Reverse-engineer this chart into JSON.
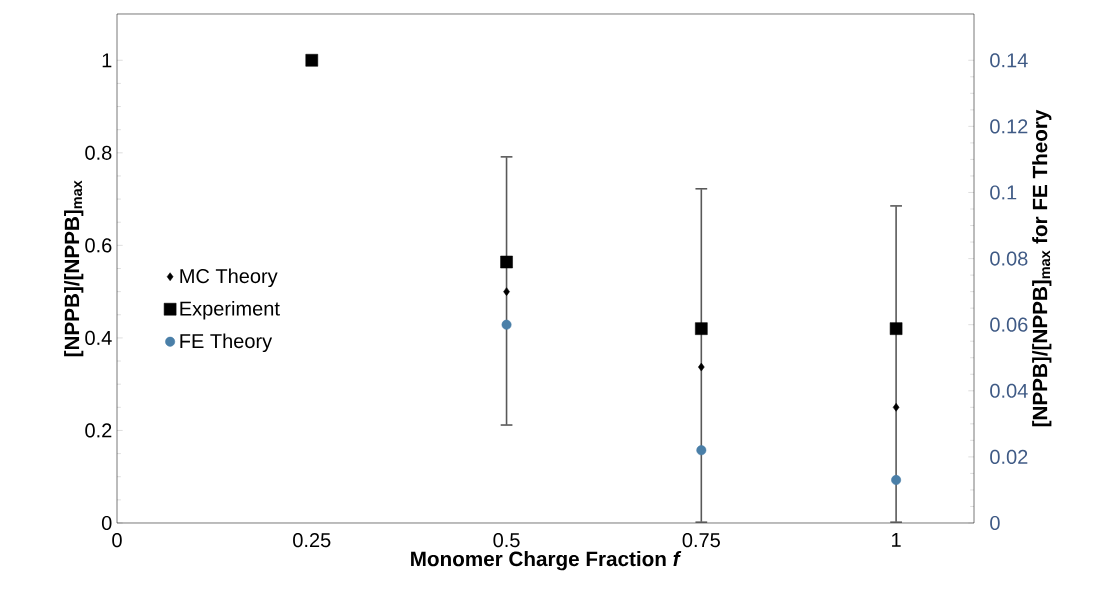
{
  "chart_data": {
    "type": "scatter",
    "xlabel": "Monomer Charge Fraction *f*",
    "ylabel": "[NPPB]/[NPPB]$_{max}$",
    "y2label": "[NPPB]/[NPPB]$_{max}$ for FE Theory",
    "x": [
      0.25,
      0.5,
      0.75,
      1
    ],
    "series": [
      {
        "name": "MC Theory",
        "color": "#000000",
        "marker": "diamond",
        "values": [
          null,
          0.5,
          0.337,
          0.25
        ]
      },
      {
        "name": "Experiment",
        "color": "#000000",
        "marker": "square",
        "values": [
          1,
          0.564,
          0.42,
          0.42
        ],
        "errors": [
          null,
          [
            0.21,
            0.793
          ],
          [
            0,
            0.724
          ],
          [
            0,
            0.687
          ]
        ]
      },
      {
        "name": "FE Theory",
        "color": "#4a7fa8",
        "marker": "circle",
        "axis": "y2",
        "values": [
          null,
          0.06,
          0.022,
          0.013
        ]
      }
    ],
    "xlim": [
      0,
      1.1
    ],
    "xticks": [
      0,
      0.25,
      0.5,
      0.75,
      1
    ],
    "ylim": [
      0,
      1.1
    ],
    "yticks": [
      0,
      0.2,
      0.4,
      0.6,
      0.8,
      1
    ],
    "y2lim": [
      0,
      0.154
    ],
    "y2ticks": [
      0,
      0.02,
      0.04,
      0.06,
      0.08,
      0.1,
      0.12,
      0.14
    ],
    "grid": false,
    "legend": "left"
  }
}
